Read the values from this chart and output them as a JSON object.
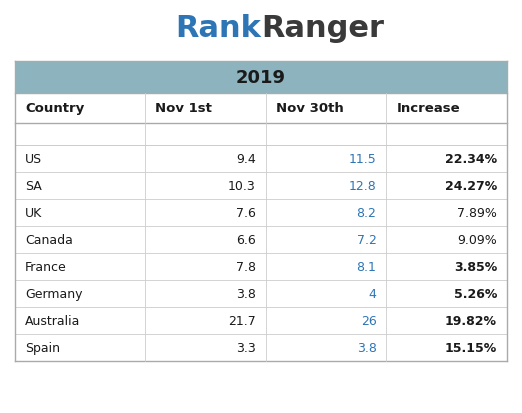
{
  "logo_rank": "Rank",
  "logo_ranger": "Ranger",
  "logo_color_rank": "#2e75b6",
  "logo_color_ranger": "#3a3a3a",
  "title": "2019",
  "header_bg": "#8db4be",
  "bg_color": "#ffffff",
  "border_color": "#aaaaaa",
  "line_color": "#cccccc",
  "text_dark": "#1a1a1a",
  "col_headers": [
    "Country",
    "Nov 1st",
    "Nov 30th",
    "Increase"
  ],
  "rows": [
    [
      "US",
      "9.4",
      "11.5",
      "22.34%",
      true
    ],
    [
      "SA",
      "10.3",
      "12.8",
      "24.27%",
      true
    ],
    [
      "UK",
      "7.6",
      "8.2",
      "7.89%",
      false
    ],
    [
      "Canada",
      "6.6",
      "7.2",
      "9.09%",
      false
    ],
    [
      "France",
      "7.8",
      "8.1",
      "3.85%",
      true
    ],
    [
      "Germany",
      "3.8",
      "4",
      "5.26%",
      true
    ],
    [
      "Australia",
      "21.7",
      "26",
      "19.82%",
      true
    ],
    [
      "Spain",
      "3.3",
      "3.8",
      "15.15%",
      true
    ]
  ],
  "nov30_color": "#2e75b6",
  "font_size_logo": 22,
  "font_size_title": 13,
  "font_size_header": 9.5,
  "font_size_data": 9
}
